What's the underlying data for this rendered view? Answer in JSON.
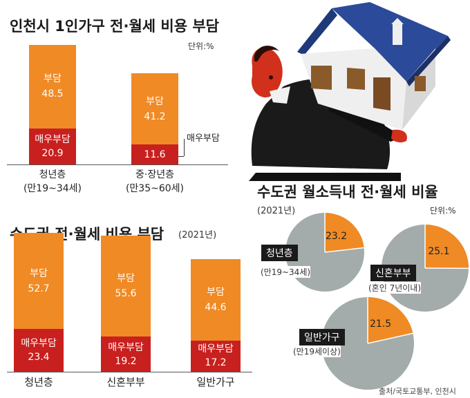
{
  "top": {
    "title": "인천시 1인가구 전·월세 비용 부담",
    "unit": "단위:%"
  },
  "bottom": {
    "title": "수도권 전·월세 비용 부담",
    "subtitle": "(2021년)"
  },
  "pies": {
    "title": "수도권 월소득내 전·월세 비율",
    "subtitle": "(2021년)",
    "unit": "단위:%"
  },
  "source": "출처/국토교통부, 인천시",
  "chart_data": [
    {
      "type": "bar",
      "title": "인천시 1인가구 전·월세 비용 부담",
      "unit": "단위:%",
      "categories": [
        "청년층",
        "중·장년층"
      ],
      "category_subs": [
        "(만19~34세)",
        "(만35~60세)"
      ],
      "series": [
        {
          "name": "부담",
          "values": [
            48.5,
            41.2
          ],
          "color": "#f08a24"
        },
        {
          "name": "매우부담",
          "values": [
            20.9,
            11.6
          ],
          "color": "#c8201f"
        }
      ],
      "callout": "매우부담"
    },
    {
      "type": "bar",
      "title": "수도권 전·월세 비용 부담",
      "subtitle": "(2021년)",
      "categories": [
        "청년층",
        "신혼부부",
        "일반가구"
      ],
      "series": [
        {
          "name": "부담",
          "values": [
            52.7,
            55.6,
            44.6
          ],
          "color": "#f08a24"
        },
        {
          "name": "매우부담",
          "values": [
            23.4,
            19.2,
            17.2
          ],
          "color": "#c8201f"
        }
      ]
    },
    {
      "type": "pie",
      "title": "수도권 월소득내 전·월세 비율",
      "subtitle": "(2021년)",
      "unit": "단위:%",
      "pies": [
        {
          "label": "청년층",
          "sub": "(만19~34세)",
          "value": 23.2
        },
        {
          "label": "신혼부부",
          "sub": "(혼인 7년이내)",
          "value": 25.1
        },
        {
          "label": "일반가구",
          "sub": "(만19세이상)",
          "value": 21.5
        }
      ],
      "colors": {
        "highlight": "#f08a24",
        "rest": "#a3abab"
      }
    }
  ]
}
